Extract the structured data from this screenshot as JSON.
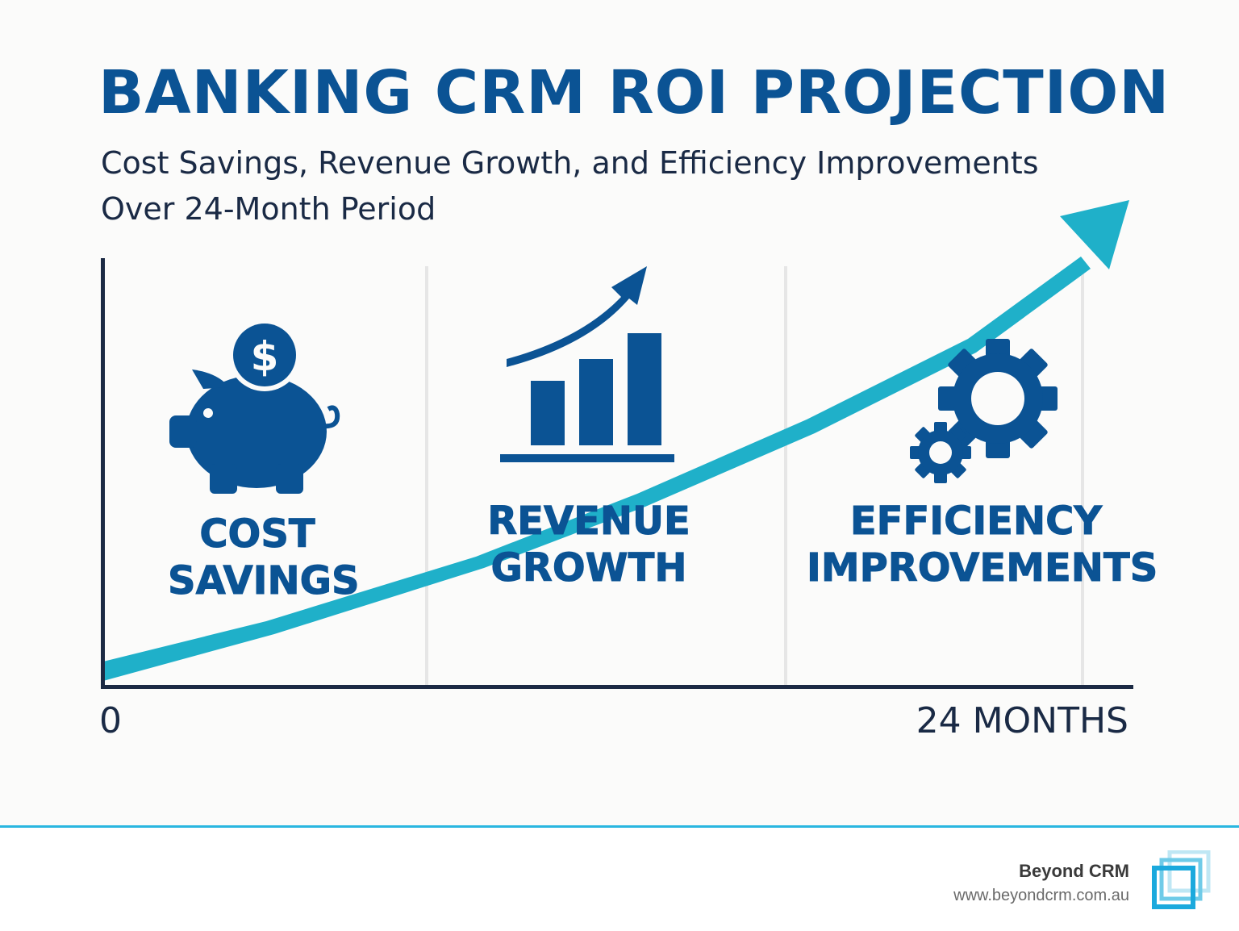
{
  "header": {
    "title": "BANKING CRM ROI PROJECTION",
    "subtitle_line1": "Cost Savings, Revenue Growth, and Efficiency Improvements",
    "subtitle_line2": "Over 24-Month Period"
  },
  "axis": {
    "x_start_label": "0",
    "x_end_label": "24 MONTHS"
  },
  "categories": [
    {
      "line1": "COST",
      "line2": "SAVINGS",
      "icon": "piggy-bank-icon"
    },
    {
      "line1": "REVENUE",
      "line2": "GROWTH",
      "icon": "bar-chart-growth-icon"
    },
    {
      "line1": "EFFICIENCY",
      "line2": "IMPROVEMENTS",
      "icon": "gears-icon"
    }
  ],
  "footer": {
    "brand": "Beyond CRM",
    "url": "www.beyondcrm.com.au",
    "logo_icon": "beyond-crm-logo-icon"
  },
  "colors": {
    "title": "#0b5394",
    "icon": "#0b5394",
    "trend_arrow": "#1fb0c9",
    "axis": "#1c2a44",
    "accent_line": "#29b6e0"
  }
}
